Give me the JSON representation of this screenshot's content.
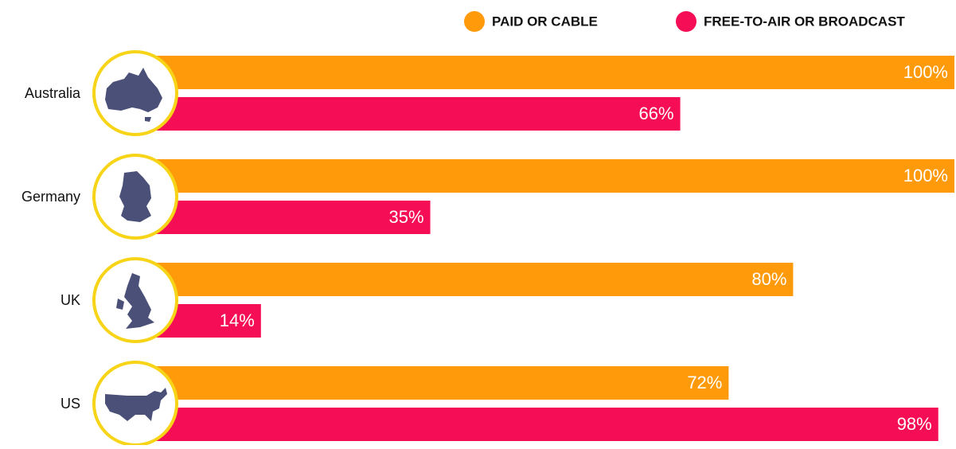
{
  "chart_data": {
    "type": "hbar",
    "categories": [
      "Australia",
      "Germany",
      "UK",
      "US"
    ],
    "series": [
      {
        "name": "PAID OR CABLE",
        "color": "#ff9a0a",
        "values": [
          100,
          100,
          80,
          72
        ],
        "value_labels": [
          "100%",
          "100%",
          "80%",
          "72%"
        ]
      },
      {
        "name": "FREE-TO-AIR OR BROADCAST",
        "color": "#f50d55",
        "values": [
          66,
          35,
          14,
          98
        ],
        "value_labels": [
          "66%",
          "35%",
          "14%",
          "98%"
        ]
      }
    ],
    "xlim": [
      0,
      100
    ],
    "legend": "top-right"
  }
}
